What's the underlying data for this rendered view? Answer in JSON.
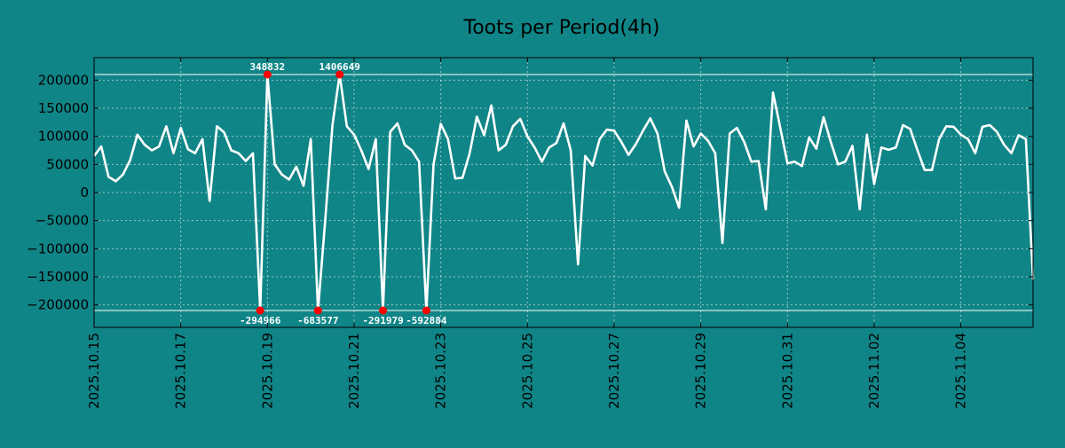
{
  "chart_data": {
    "type": "line",
    "title": "Toots per Period(4h)",
    "xlabel": "",
    "ylabel": "",
    "ylim": [
      -240000,
      240000
    ],
    "clip_limits": [
      -210000,
      210000
    ],
    "x_range": [
      "2025.10.15",
      "2025.11.06 18:00"
    ],
    "grid": true,
    "legend": "none",
    "y_ticks": [
      {
        "value": 200000,
        "label": "200000"
      },
      {
        "value": 150000,
        "label": "150000"
      },
      {
        "value": 100000,
        "label": "100000"
      },
      {
        "value": 50000,
        "label": "50000"
      },
      {
        "value": 0,
        "label": "0"
      },
      {
        "value": -50000,
        "label": "−50000"
      },
      {
        "value": -100000,
        "label": "−100000"
      },
      {
        "value": -150000,
        "label": "−150000"
      },
      {
        "value": -200000,
        "label": "−200000"
      }
    ],
    "x_ticks": [
      {
        "day": 0,
        "label": "2025.10.15"
      },
      {
        "day": 2,
        "label": "2025.10.17"
      },
      {
        "day": 4,
        "label": "2025.10.19"
      },
      {
        "day": 6,
        "label": "2025.10.21"
      },
      {
        "day": 8,
        "label": "2025.10.23"
      },
      {
        "day": 10,
        "label": "2025.10.25"
      },
      {
        "day": 12,
        "label": "2025.10.27"
      },
      {
        "day": 14,
        "label": "2025.10.29"
      },
      {
        "day": 16,
        "label": "2025.10.31"
      },
      {
        "day": 18,
        "label": "2025.11.02"
      },
      {
        "day": 20,
        "label": "2025.11.04"
      }
    ],
    "period_days": 0.16667,
    "values": [
      65000,
      82000,
      28000,
      20000,
      32000,
      58000,
      103000,
      85000,
      75000,
      82000,
      118000,
      70000,
      115000,
      77000,
      70000,
      95000,
      -15000,
      118000,
      107000,
      75000,
      70000,
      56000,
      70000,
      -210000,
      210000,
      50000,
      32000,
      23000,
      46000,
      12000,
      95000,
      -210000,
      -50000,
      120000,
      210000,
      118000,
      103000,
      75000,
      42000,
      95000,
      -210000,
      108000,
      123000,
      85000,
      75000,
      55000,
      -210000,
      50000,
      122000,
      95000,
      25000,
      26000,
      70000,
      135000,
      102000,
      155000,
      75000,
      85000,
      118000,
      131000,
      100000,
      80000,
      55000,
      80000,
      88000,
      123000,
      75000,
      -128000,
      65000,
      48000,
      95000,
      112000,
      110000,
      90000,
      67000,
      86000,
      110000,
      132000,
      105000,
      38000,
      10000,
      -27000,
      128000,
      82000,
      105000,
      92000,
      70000,
      -90000,
      105000,
      115000,
      90000,
      55000,
      56000,
      -30000,
      178000,
      115000,
      52000,
      55000,
      47000,
      98000,
      78000,
      134000,
      90000,
      50000,
      55000,
      83000,
      -30000,
      103000,
      15000,
      80000,
      76000,
      80000,
      120000,
      113000,
      75000,
      40000,
      40000,
      95000,
      118000,
      117000,
      103000,
      95000,
      70000,
      117000,
      120000,
      108000,
      85000,
      70000,
      102000,
      95000,
      -155000
    ],
    "annotations": [
      {
        "index": 23,
        "label": "-294966",
        "position": "below"
      },
      {
        "index": 24,
        "label": "348832",
        "position": "above"
      },
      {
        "index": 31,
        "label": "-683577",
        "position": "below"
      },
      {
        "index": 34,
        "label": "1406649",
        "position": "above"
      },
      {
        "index": 40,
        "label": "-291979",
        "position": "below"
      },
      {
        "index": 46,
        "label": "-592884",
        "position": "below"
      }
    ],
    "colors": {
      "background": "#108587",
      "line": "#ffffff",
      "marker": "#ff0000",
      "text": "#000000",
      "annotation_text": "#ffffff"
    }
  }
}
